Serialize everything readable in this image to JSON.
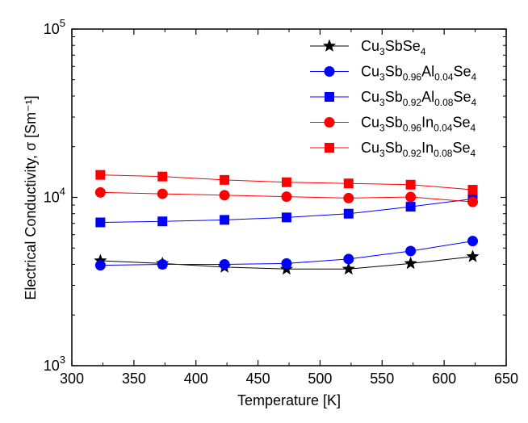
{
  "chart_data": {
    "type": "line",
    "xlabel": "Temperature [K]",
    "ylabel": "Electrical Conductivity, σ [Sm⁻¹]",
    "xlim": [
      300,
      650
    ],
    "ylim": [
      1000,
      100000
    ],
    "yscale": "log",
    "x_ticks": [
      "300",
      "350",
      "400",
      "450",
      "500",
      "550",
      "600",
      "650"
    ],
    "y_ticks": [
      {
        "base": "10",
        "exp": "3"
      },
      {
        "base": "10",
        "exp": "4"
      },
      {
        "base": "10",
        "exp": "5"
      }
    ],
    "x": [
      323,
      373,
      423,
      473,
      523,
      573,
      623
    ],
    "legend_position": "top-right",
    "grid": false,
    "series": [
      {
        "name": "Cu3SbSe4",
        "name_parts": [
          [
            "Cu",
            ""
          ],
          [
            "3",
            "sub"
          ],
          [
            "SbSe",
            ""
          ],
          [
            "4",
            "sub"
          ]
        ],
        "color": "#000000",
        "marker": "star",
        "values": [
          4200,
          4050,
          3850,
          3750,
          3750,
          4050,
          4450
        ]
      },
      {
        "name": "Cu3Sb0.96Al0.04Se4",
        "name_parts": [
          [
            "Cu",
            ""
          ],
          [
            "3",
            "sub"
          ],
          [
            "Sb",
            ""
          ],
          [
            "0.96",
            "sub"
          ],
          [
            "Al",
            ""
          ],
          [
            "0.04",
            "sub"
          ],
          [
            "Se",
            ""
          ],
          [
            "4",
            "sub"
          ]
        ],
        "color": "#0000ff",
        "marker": "circle",
        "values": [
          3950,
          4000,
          4000,
          4050,
          4300,
          4800,
          5500
        ]
      },
      {
        "name": "Cu3Sb0.92Al0.08Se4",
        "name_parts": [
          [
            "Cu",
            ""
          ],
          [
            "3",
            "sub"
          ],
          [
            "Sb",
            ""
          ],
          [
            "0.92",
            "sub"
          ],
          [
            "Al",
            ""
          ],
          [
            "0.08",
            "sub"
          ],
          [
            "Se",
            ""
          ],
          [
            "4",
            "sub"
          ]
        ],
        "color": "#0000ff",
        "marker": "square",
        "values": [
          7100,
          7200,
          7350,
          7600,
          8000,
          8800,
          9800
        ]
      },
      {
        "name": "Cu3Sb0.96In0.04Se4",
        "name_parts": [
          [
            "Cu",
            ""
          ],
          [
            "3",
            "sub"
          ],
          [
            "Sb",
            ""
          ],
          [
            "0.96",
            "sub"
          ],
          [
            "In",
            ""
          ],
          [
            "0.04",
            "sub"
          ],
          [
            "Se",
            ""
          ],
          [
            "4",
            "sub"
          ]
        ],
        "color": "#ff0000",
        "marker": "circle",
        "values": [
          10700,
          10500,
          10300,
          10100,
          9900,
          10050,
          9400
        ]
      },
      {
        "name": "Cu3Sb0.92In0.08Se4",
        "name_parts": [
          [
            "Cu",
            ""
          ],
          [
            "3",
            "sub"
          ],
          [
            "Sb",
            ""
          ],
          [
            "0.92",
            "sub"
          ],
          [
            "In",
            ""
          ],
          [
            "0.08",
            "sub"
          ],
          [
            "Se",
            ""
          ],
          [
            "4",
            "sub"
          ]
        ],
        "color": "#ff0000",
        "marker": "square",
        "values": [
          13600,
          13300,
          12700,
          12300,
          12100,
          11900,
          11100
        ]
      }
    ]
  }
}
